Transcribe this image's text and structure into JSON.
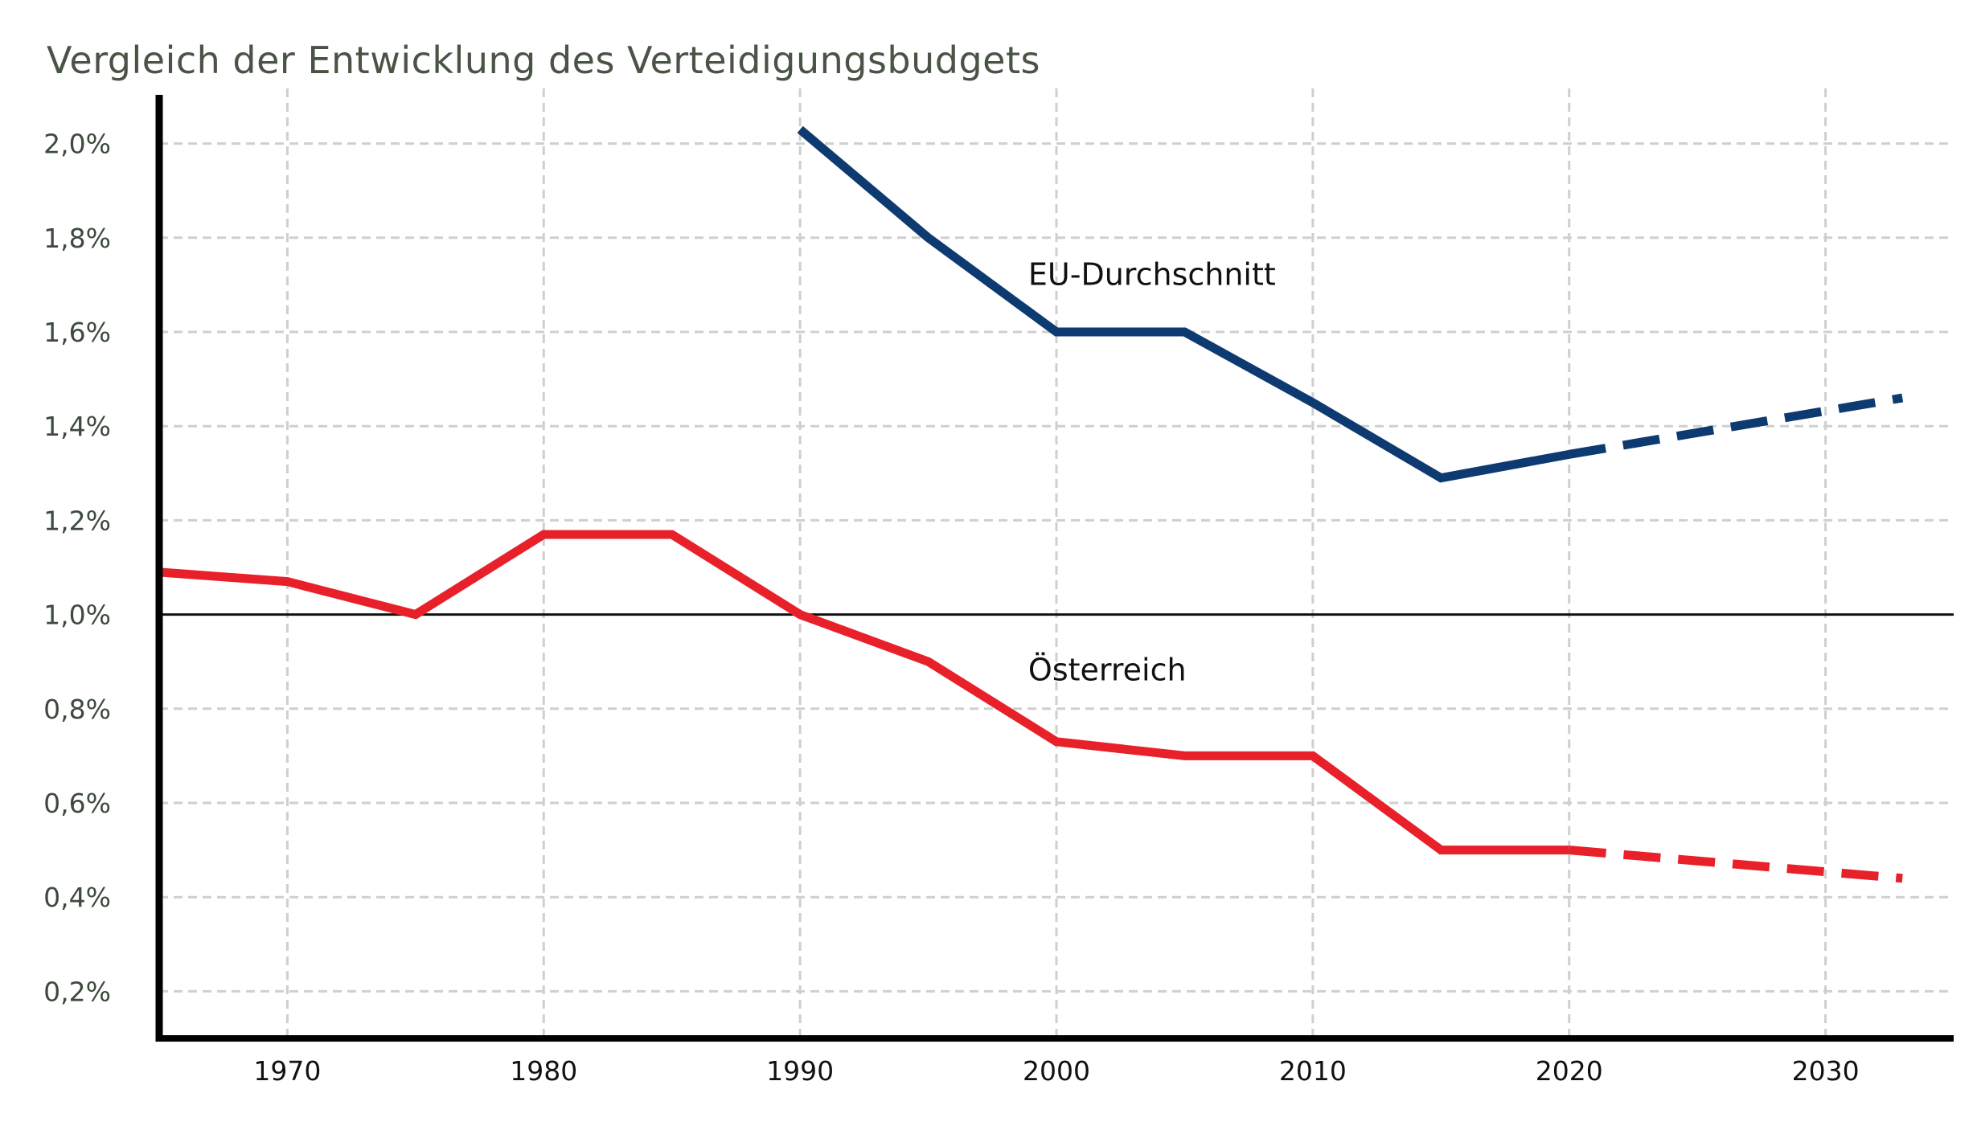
{
  "chart_data": {
    "type": "line",
    "title": "Vergleich der Entwicklung des Verteidigungsbudgets",
    "xlabel": "",
    "ylabel": "",
    "xlim": [
      1965,
      2035
    ],
    "ylim": [
      0.1,
      2.1
    ],
    "x_ticks": [
      1970,
      1980,
      1990,
      2000,
      2010,
      2020,
      2030
    ],
    "x_tick_labels": [
      "1970",
      "1980",
      "1990",
      "2000",
      "2010",
      "2020",
      "2030"
    ],
    "y_ticks": [
      0.2,
      0.4,
      0.6,
      0.8,
      1.0,
      1.2,
      1.4,
      1.6,
      1.8,
      2.0
    ],
    "y_tick_labels": [
      "0,2%",
      "0,4%",
      "0,6%",
      "0,8%",
      "1,0%",
      "1,2%",
      "1,4%",
      "1,6%",
      "1,8%",
      "2,0%"
    ],
    "grid": true,
    "reference_line": 1.0,
    "series": [
      {
        "name": "EU-Durchschnitt",
        "color": "#0d3a70",
        "x": [
          1990,
          1995,
          2000,
          2005,
          2010,
          2015,
          2020
        ],
        "values": [
          2.03,
          1.8,
          1.6,
          1.6,
          1.45,
          1.29,
          1.34
        ],
        "projection": {
          "x": [
            2020,
            2033
          ],
          "values": [
            1.34,
            1.46
          ]
        }
      },
      {
        "name": "Österreich",
        "color": "#e8202a",
        "x": [
          1965,
          1970,
          1975,
          1980,
          1985,
          1990,
          1995,
          2000,
          2005,
          2010,
          2015,
          2020
        ],
        "values": [
          1.09,
          1.07,
          1.0,
          1.17,
          1.17,
          1.0,
          0.9,
          0.73,
          0.7,
          0.7,
          0.5,
          0.5
        ],
        "projection": {
          "x": [
            2020,
            2033
          ],
          "values": [
            0.5,
            0.44
          ]
        }
      }
    ]
  }
}
